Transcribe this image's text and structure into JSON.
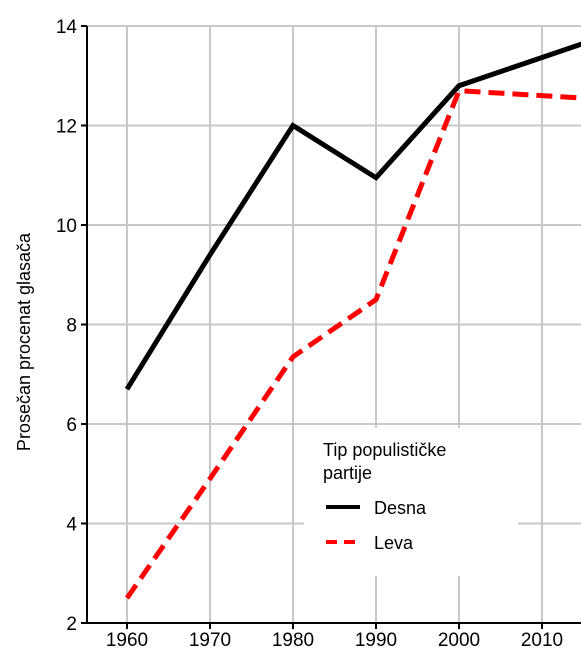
{
  "chart_data": {
    "type": "line",
    "title": "",
    "xlabel": "",
    "ylabel": "Prosečan procenat glasača",
    "x": [
      1960,
      1970,
      1980,
      1990,
      2000,
      2010,
      2015
    ],
    "x_ticks": [
      1960,
      1970,
      1980,
      1990,
      2000,
      2010
    ],
    "xlim": [
      1956,
      2015
    ],
    "ylim": [
      2,
      14
    ],
    "y_ticks": [
      2,
      4,
      6,
      8,
      10,
      12,
      14
    ],
    "grid": true,
    "legend": {
      "title_line1": "Tip populističke",
      "title_line2": "partije",
      "placement": "bottom-right"
    },
    "series": [
      {
        "name": "Desna",
        "color": "#000000",
        "style": "solid",
        "points": [
          [
            1960,
            6.7
          ],
          [
            1970,
            9.4
          ],
          [
            1980,
            12.0
          ],
          [
            1990,
            10.95
          ],
          [
            2000,
            12.8
          ],
          [
            2015,
            13.65
          ]
        ]
      },
      {
        "name": "Leva",
        "color": "#ff0000",
        "style": "dashed",
        "points": [
          [
            1960,
            2.5
          ],
          [
            1970,
            4.9
          ],
          [
            1980,
            7.35
          ],
          [
            1990,
            8.5
          ],
          [
            2000,
            12.7
          ],
          [
            2015,
            12.55
          ]
        ]
      }
    ]
  }
}
